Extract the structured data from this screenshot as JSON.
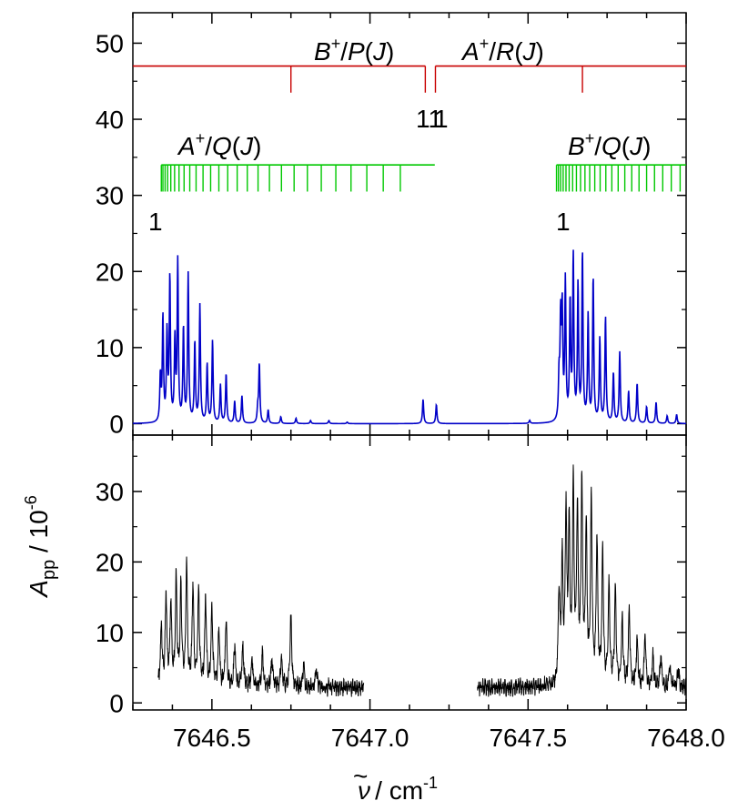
{
  "chart_data": [
    {
      "type": "line",
      "panel": "top",
      "x_range": [
        7646.25,
        7648.0
      ],
      "ylim": [
        -1.5,
        54
      ],
      "y_ticks": [
        0,
        10,
        20,
        30,
        40,
        50
      ],
      "x_ticks": [
        7646.5,
        7647.0,
        7647.5,
        7648.0
      ],
      "grid": false,
      "line_color": "#0000c8",
      "peaks": [
        {
          "x": 7646.337,
          "y": 6.0
        },
        {
          "x": 7646.345,
          "y": 13.8
        },
        {
          "x": 7646.358,
          "y": 11.5
        },
        {
          "x": 7646.367,
          "y": 18.9
        },
        {
          "x": 7646.383,
          "y": 10.5
        },
        {
          "x": 7646.392,
          "y": 21.0
        },
        {
          "x": 7646.41,
          "y": 12.3
        },
        {
          "x": 7646.425,
          "y": 19.4
        },
        {
          "x": 7646.446,
          "y": 10.5
        },
        {
          "x": 7646.462,
          "y": 15.4
        },
        {
          "x": 7646.485,
          "y": 7.7
        },
        {
          "x": 7646.502,
          "y": 10.8
        },
        {
          "x": 7646.527,
          "y": 5.0
        },
        {
          "x": 7646.545,
          "y": 6.5
        },
        {
          "x": 7646.572,
          "y": 2.9
        },
        {
          "x": 7646.595,
          "y": 3.6
        },
        {
          "x": 7646.645,
          "y": 1.8
        },
        {
          "x": 7646.65,
          "y": 7.8
        },
        {
          "x": 7646.678,
          "y": 1.8
        },
        {
          "x": 7646.718,
          "y": 0.9
        },
        {
          "x": 7646.766,
          "y": 0.7
        },
        {
          "x": 7646.812,
          "y": 0.4
        },
        {
          "x": 7646.87,
          "y": 0.4
        },
        {
          "x": 7646.928,
          "y": 0.2
        },
        {
          "x": 7647.168,
          "y": 3.2
        },
        {
          "x": 7647.21,
          "y": 2.5
        },
        {
          "x": 7647.505,
          "y": 0.4
        },
        {
          "x": 7647.598,
          "y": 5.5
        },
        {
          "x": 7647.603,
          "y": 12.7
        },
        {
          "x": 7647.608,
          "y": 14.0
        },
        {
          "x": 7647.618,
          "y": 18.3
        },
        {
          "x": 7647.633,
          "y": 15.5
        },
        {
          "x": 7647.643,
          "y": 21.5
        },
        {
          "x": 7647.658,
          "y": 17.8
        },
        {
          "x": 7647.672,
          "y": 22.1
        },
        {
          "x": 7647.69,
          "y": 13.9
        },
        {
          "x": 7647.706,
          "y": 19.0
        },
        {
          "x": 7647.727,
          "y": 11.0
        },
        {
          "x": 7647.745,
          "y": 13.9
        },
        {
          "x": 7647.77,
          "y": 6.6
        },
        {
          "x": 7647.79,
          "y": 9.3
        },
        {
          "x": 7647.818,
          "y": 4.2
        },
        {
          "x": 7647.845,
          "y": 5.3
        },
        {
          "x": 7647.875,
          "y": 2.2
        },
        {
          "x": 7647.905,
          "y": 2.8
        },
        {
          "x": 7647.94,
          "y": 1.0
        },
        {
          "x": 7647.97,
          "y": 1.2
        }
      ],
      "stick_spectra": [
        {
          "name_parts": [
            "A",
            "+",
            "/",
            "Q",
            "(",
            "J",
            ")"
          ],
          "color": "#00c800",
          "y_base": 34,
          "y_tip": 30.5,
          "x_start": 7646.34,
          "x_end": 7647.205,
          "line_x": [
            7646.34,
            7646.345,
            7646.352,
            7646.36,
            7646.37,
            7646.382,
            7646.396,
            7646.412,
            7646.43,
            7646.45,
            7646.472,
            7646.496,
            7646.522,
            7646.55,
            7646.58,
            7646.612,
            7646.646,
            7646.682,
            7646.72,
            7646.76,
            7646.802,
            7646.846,
            7646.892,
            7646.94,
            7646.99,
            7647.042,
            7647.096
          ],
          "first_label": "1"
        },
        {
          "name_parts": [
            "B",
            "+",
            "/",
            "Q",
            "(",
            "J",
            ")"
          ],
          "color": "#00c800",
          "y_base": 34,
          "y_tip": 30.5,
          "x_start": 7647.59,
          "x_end": 7648.0,
          "line_x": [
            7647.59,
            7647.596,
            7647.603,
            7647.611,
            7647.62,
            7647.63,
            7647.641,
            7647.653,
            7647.666,
            7647.68,
            7647.695,
            7647.711,
            7647.728,
            7647.746,
            7647.765,
            7647.785,
            7647.806,
            7647.828,
            7647.851,
            7647.875,
            7647.9,
            7647.926,
            7647.953,
            7647.981
          ],
          "first_label": "1"
        },
        {
          "name_parts": [
            "B",
            "+",
            "/",
            "P",
            "(",
            "J",
            ")"
          ],
          "color": "#c80000",
          "y_base": 47,
          "y_tip": 43.5,
          "x_start": 7646.25,
          "x_end": 7647.175,
          "line_x": [
            7646.75,
            7647.175
          ],
          "end_label": "11"
        },
        {
          "name_parts": [
            "A",
            "+",
            "/",
            "R",
            "(",
            "J",
            ")"
          ],
          "color": "#c80000",
          "y_base": 47,
          "y_tip": 43.5,
          "x_start": 7647.207,
          "x_end": 7648.0,
          "line_x": [
            7647.207,
            7647.672
          ],
          "end_label": "1"
        }
      ]
    },
    {
      "type": "line",
      "panel": "bottom",
      "x_range": [
        7646.25,
        7648.0
      ],
      "ylim": [
        -1,
        38
      ],
      "y_ticks": [
        0,
        10,
        20,
        30
      ],
      "x_ticks": [
        7646.5,
        7647.0,
        7647.5,
        7648.0
      ],
      "grid": false,
      "line_color": "#000000",
      "segments": [
        [
          7646.33,
          7646.98
        ],
        [
          7647.34,
          7648.0
        ]
      ],
      "baseline": 2.2,
      "peaks": [
        {
          "x": 7646.34,
          "y": 10.0
        },
        {
          "x": 7646.355,
          "y": 15.0
        },
        {
          "x": 7646.37,
          "y": 14.0
        },
        {
          "x": 7646.387,
          "y": 17.5
        },
        {
          "x": 7646.402,
          "y": 16.0
        },
        {
          "x": 7646.42,
          "y": 20.1
        },
        {
          "x": 7646.44,
          "y": 16.5
        },
        {
          "x": 7646.458,
          "y": 16.0
        },
        {
          "x": 7646.48,
          "y": 14.5
        },
        {
          "x": 7646.5,
          "y": 13.0
        },
        {
          "x": 7646.522,
          "y": 9.0
        },
        {
          "x": 7646.545,
          "y": 11.5
        },
        {
          "x": 7646.572,
          "y": 7.0
        },
        {
          "x": 7646.598,
          "y": 7.0
        },
        {
          "x": 7646.627,
          "y": 5.0
        },
        {
          "x": 7646.66,
          "y": 5.5
        },
        {
          "x": 7646.69,
          "y": 4.5
        },
        {
          "x": 7646.72,
          "y": 5.0
        },
        {
          "x": 7646.75,
          "y": 12.2
        },
        {
          "x": 7646.79,
          "y": 3.8
        },
        {
          "x": 7646.83,
          "y": 3.2
        },
        {
          "x": 7647.598,
          "y": 15.5
        },
        {
          "x": 7647.608,
          "y": 20.0
        },
        {
          "x": 7647.62,
          "y": 28.0
        },
        {
          "x": 7647.63,
          "y": 25.0
        },
        {
          "x": 7647.643,
          "y": 32.0
        },
        {
          "x": 7647.656,
          "y": 28.0
        },
        {
          "x": 7647.67,
          "y": 33.0
        },
        {
          "x": 7647.684,
          "y": 26.0
        },
        {
          "x": 7647.7,
          "y": 30.0
        },
        {
          "x": 7647.718,
          "y": 24.0
        },
        {
          "x": 7647.736,
          "y": 22.0
        },
        {
          "x": 7647.756,
          "y": 17.0
        },
        {
          "x": 7647.776,
          "y": 16.0
        },
        {
          "x": 7647.798,
          "y": 11.0
        },
        {
          "x": 7647.82,
          "y": 13.0
        },
        {
          "x": 7647.845,
          "y": 8.0
        },
        {
          "x": 7647.87,
          "y": 8.5
        },
        {
          "x": 7647.895,
          "y": 5.5
        },
        {
          "x": 7647.92,
          "y": 5.0
        },
        {
          "x": 7647.948,
          "y": 3.5
        },
        {
          "x": 7647.975,
          "y": 3.0
        }
      ]
    }
  ],
  "axes": {
    "x_tick_labels": [
      "7646.5",
      "7647.0",
      "7647.5",
      "7648.0"
    ],
    "top_y_tick_labels": [
      "0",
      "10",
      "20",
      "30",
      "40",
      "50"
    ],
    "bottom_y_tick_labels": [
      "0",
      "10",
      "20",
      "30"
    ],
    "ylabel_parts": [
      "A",
      "pp",
      " / 10",
      "-6"
    ],
    "xlabel_parts": [
      "ν",
      "~",
      " / cm",
      "-1"
    ]
  }
}
